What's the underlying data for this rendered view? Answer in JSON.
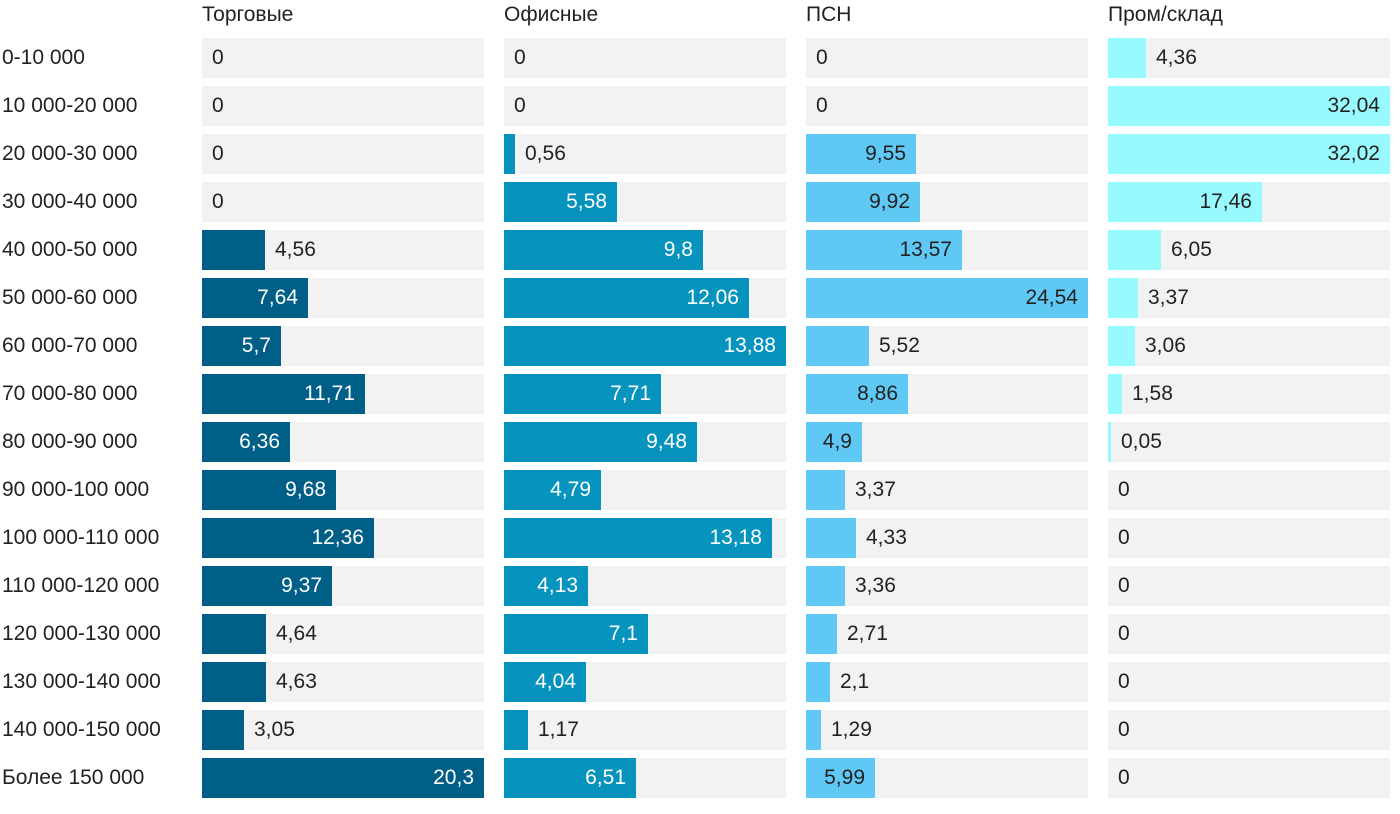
{
  "chart_data": {
    "type": "bar",
    "orientation": "horizontal",
    "layout": "small-multiples",
    "categories": [
      "0-10 000",
      "10 000-20 000",
      "20 000-30 000",
      "30 000-40 000",
      "40 000-50 000",
      "50 000-60 000",
      "60 000-70 000",
      "70 000-80 000",
      "80 000-90 000",
      "90 000-100 000",
      "100 000-110 000",
      "110 000-120 000",
      "120 000-130 000",
      "130 000-140 000",
      "140 000-150 000",
      "Более 150 000"
    ],
    "series": [
      {
        "name": "Торговые",
        "color": "#005f87",
        "text_on_bar": "#ffffff",
        "values": [
          0,
          0,
          0,
          0,
          4.56,
          7.64,
          5.7,
          11.71,
          6.36,
          9.68,
          12.36,
          9.37,
          4.64,
          4.63,
          3.05,
          20.3
        ],
        "labels": [
          "0",
          "0",
          "0",
          "0",
          "4,56",
          "7,64",
          "5,7",
          "11,71",
          "6,36",
          "9,68",
          "12,36",
          "9,37",
          "4,64",
          "4,63",
          "3,05",
          "20,3"
        ]
      },
      {
        "name": "Офисные",
        "color": "#0693be",
        "text_on_bar": "#ffffff",
        "values": [
          0,
          0,
          0.56,
          5.58,
          9.8,
          12.06,
          13.88,
          7.71,
          9.48,
          4.79,
          13.18,
          4.13,
          7.1,
          4.04,
          1.17,
          6.51
        ],
        "labels": [
          "0",
          "0",
          "0,56",
          "5,58",
          "9,8",
          "12,06",
          "13,88",
          "7,71",
          "9,48",
          "4,79",
          "13,18",
          "4,13",
          "7,1",
          "4,04",
          "1,17",
          "6,51"
        ]
      },
      {
        "name": "ПСН",
        "color": "#5fc8f5",
        "text_on_bar": "#222222",
        "values": [
          0,
          0,
          9.55,
          9.92,
          13.57,
          24.54,
          5.52,
          8.86,
          4.9,
          3.37,
          4.33,
          3.36,
          2.71,
          2.1,
          1.29,
          5.99
        ],
        "labels": [
          "0",
          "0",
          "9,55",
          "9,92",
          "13,57",
          "24,54",
          "5,52",
          "8,86",
          "4,9",
          "3,37",
          "4,33",
          "3,36",
          "2,71",
          "2,1",
          "1,29",
          "5,99"
        ]
      },
      {
        "name": "Пром/склад",
        "color": "#98faff",
        "text_on_bar": "#222222",
        "values": [
          4.36,
          32.04,
          32.02,
          17.46,
          6.05,
          3.37,
          3.06,
          1.58,
          0.05,
          0,
          0,
          0,
          0,
          0,
          0,
          0
        ],
        "labels": [
          "4,36",
          "32,04",
          "32,02",
          "17,46",
          "6,05",
          "3,37",
          "3,06",
          "1,58",
          "0,05",
          "0",
          "0",
          "0",
          "0",
          "0",
          "0",
          "0"
        ]
      }
    ],
    "xlim_per_series": [
      20.3,
      13.88,
      24.54,
      32.04
    ],
    "track_color": "#f2f2f2",
    "grid": false,
    "legend": "none",
    "title": "",
    "xlabel": "",
    "ylabel": ""
  }
}
